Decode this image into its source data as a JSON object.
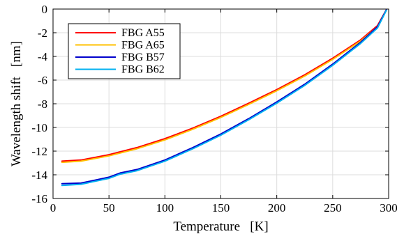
{
  "chart_data": {
    "type": "line",
    "title": "",
    "xlabel": "Temperature   [K]",
    "ylabel": "Wavelength shift   [nm]",
    "xlim": [
      0,
      300
    ],
    "ylim": [
      -16,
      0
    ],
    "xticks": [
      0,
      50,
      100,
      150,
      200,
      250,
      300
    ],
    "yticks": [
      0,
      -2,
      -4,
      -6,
      -8,
      -10,
      -12,
      -14,
      -16
    ],
    "grid": true,
    "legend_position": "top-left",
    "series": [
      {
        "name": "FBG A55",
        "color": "#ff0000",
        "x": [
          8,
          25,
          50,
          75,
          100,
          125,
          150,
          175,
          200,
          225,
          250,
          275,
          290,
          298
        ],
        "y": [
          -12.85,
          -12.75,
          -12.3,
          -11.7,
          -10.95,
          -10.05,
          -9.05,
          -7.95,
          -6.8,
          -5.55,
          -4.15,
          -2.6,
          -1.4,
          -0.05
        ]
      },
      {
        "name": "FBG A65",
        "color": "#ffc000",
        "x": [
          8,
          25,
          50,
          75,
          100,
          125,
          150,
          175,
          200,
          225,
          250,
          275,
          290,
          298
        ],
        "y": [
          -12.95,
          -12.85,
          -12.4,
          -11.8,
          -11.05,
          -10.15,
          -9.15,
          -8.05,
          -6.9,
          -5.65,
          -4.25,
          -2.7,
          -1.5,
          -0.1
        ]
      },
      {
        "name": "FBG B57",
        "color": "#0000cc",
        "x": [
          8,
          25,
          50,
          60,
          75,
          100,
          125,
          150,
          175,
          200,
          225,
          250,
          275,
          290,
          298
        ],
        "y": [
          -14.75,
          -14.7,
          -14.2,
          -13.85,
          -13.55,
          -12.75,
          -11.7,
          -10.55,
          -9.25,
          -7.85,
          -6.35,
          -4.65,
          -2.8,
          -1.5,
          -0.05
        ]
      },
      {
        "name": "FBG B62",
        "color": "#00b0f0",
        "x": [
          8,
          25,
          50,
          60,
          75,
          100,
          125,
          150,
          175,
          200,
          225,
          250,
          275,
          290,
          298
        ],
        "y": [
          -14.9,
          -14.8,
          -14.3,
          -13.95,
          -13.65,
          -12.85,
          -11.8,
          -10.65,
          -9.35,
          -7.95,
          -6.45,
          -4.75,
          -2.9,
          -1.6,
          -0.1
        ]
      }
    ]
  }
}
